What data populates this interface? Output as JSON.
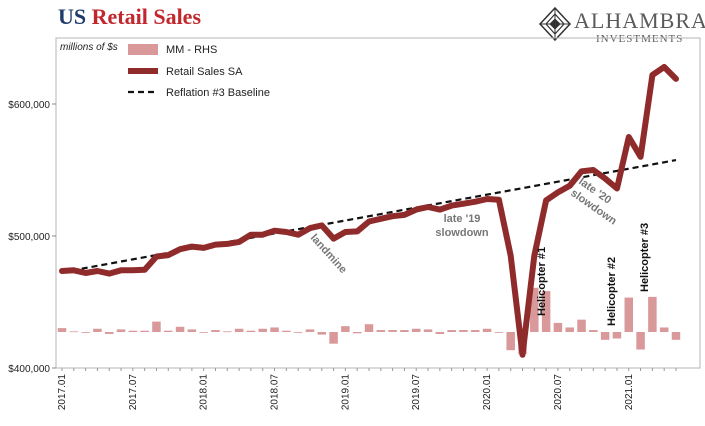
{
  "header": {
    "title_part1": "US",
    "title_part2": "Retail Sales",
    "logo_name": "ALHAMBRA",
    "logo_sub": "INVESTMENTS"
  },
  "colors": {
    "series_line": "#8f2b2b",
    "bars": "#d9999b",
    "baseline": "#111111",
    "annotation": "#777777",
    "title_blue": "#1f3a6b",
    "title_red": "#c1272d"
  },
  "chart_data": {
    "type": "line",
    "title": "US Retail Sales",
    "ylabel": "millions of $s",
    "ylim": [
      400000,
      650000
    ],
    "y_ticks": [
      400000,
      500000,
      600000
    ],
    "y_tick_labels": [
      "$400,000",
      "$500,000",
      "$600,000"
    ],
    "x_ticks": [
      "2017.01",
      "2017.07",
      "2018.01",
      "2018.07",
      "2019.01",
      "2019.07",
      "2020.01",
      "2020.07",
      "2021.01"
    ],
    "legend": {
      "position": "top-left",
      "entries": [
        "MM - RHS",
        "Retail Sales SA",
        "Reflation #3 Baseline"
      ]
    },
    "months": [
      "2017.01",
      "2017.02",
      "2017.03",
      "2017.04",
      "2017.05",
      "2017.06",
      "2017.07",
      "2017.08",
      "2017.09",
      "2017.10",
      "2017.11",
      "2017.12",
      "2018.01",
      "2018.02",
      "2018.03",
      "2018.04",
      "2018.05",
      "2018.06",
      "2018.07",
      "2018.08",
      "2018.09",
      "2018.10",
      "2018.11",
      "2018.12",
      "2019.01",
      "2019.02",
      "2019.03",
      "2019.04",
      "2019.05",
      "2019.06",
      "2019.07",
      "2019.08",
      "2019.09",
      "2019.10",
      "2019.11",
      "2019.12",
      "2020.01",
      "2020.02",
      "2020.03",
      "2020.04",
      "2020.05",
      "2020.06",
      "2020.07",
      "2020.08",
      "2020.09",
      "2020.10",
      "2020.11",
      "2020.12",
      "2021.01",
      "2021.02",
      "2021.03",
      "2021.04",
      "2021.05"
    ],
    "series": [
      {
        "name": "Retail Sales SA",
        "values": [
          473500,
          474000,
          472000,
          473500,
          471500,
          474000,
          474000,
          474500,
          484500,
          485500,
          490000,
          492000,
          491000,
          493500,
          494000,
          495500,
          501000,
          501000,
          504000,
          503000,
          501000,
          506000,
          508000,
          498000,
          503000,
          503500,
          511000,
          513000,
          515000,
          516000,
          520000,
          522000,
          520000,
          523000,
          524500,
          526000,
          528000,
          527500,
          485000,
          410000,
          485000,
          527000,
          533000,
          538000,
          549000,
          550000,
          543500,
          536000,
          575000,
          560000,
          622000,
          628000,
          619000
        ]
      },
      {
        "name": "MM - RHS",
        "axis": "right (unlabeled)",
        "values": [
          0.6,
          0.1,
          -0.1,
          0.5,
          -0.3,
          0.4,
          0.2,
          0.2,
          1.6,
          0.2,
          0.8,
          0.4,
          -0.1,
          0.3,
          0.1,
          0.5,
          0.2,
          0.5,
          0.7,
          0.2,
          -0.1,
          0.4,
          -0.4,
          -1.8,
          0.9,
          -0.2,
          1.2,
          0.3,
          0.3,
          0.3,
          0.5,
          0.4,
          -0.3,
          0.3,
          0.3,
          0.3,
          0.5,
          -0.1,
          -2.8,
          -3.4,
          6.8,
          6.3,
          1.4,
          0.7,
          1.9,
          0.3,
          -1.2,
          -1.0,
          5.3,
          -2.7,
          5.4,
          0.7,
          -1.2
        ]
      },
      {
        "name": "Reflation #3 Baseline",
        "style": "dashed",
        "start": 472500,
        "end": 557500
      }
    ],
    "annotations": [
      {
        "lines": [
          "landmine"
        ],
        "color": "annotation",
        "rotate": 48
      },
      {
        "lines": [
          "late '19",
          "slowdown"
        ],
        "color": "annotation",
        "rotate": 0
      },
      {
        "lines": [
          "late '20",
          "slowdown"
        ],
        "color": "annotation",
        "rotate": 35
      },
      {
        "lines": [
          "Helicopter #1"
        ],
        "color": "baseline",
        "rotate": -90
      },
      {
        "lines": [
          "Helicopter #2"
        ],
        "color": "baseline",
        "rotate": -90
      },
      {
        "lines": [
          "Helicopter #3"
        ],
        "color": "baseline",
        "rotate": -90
      }
    ]
  }
}
